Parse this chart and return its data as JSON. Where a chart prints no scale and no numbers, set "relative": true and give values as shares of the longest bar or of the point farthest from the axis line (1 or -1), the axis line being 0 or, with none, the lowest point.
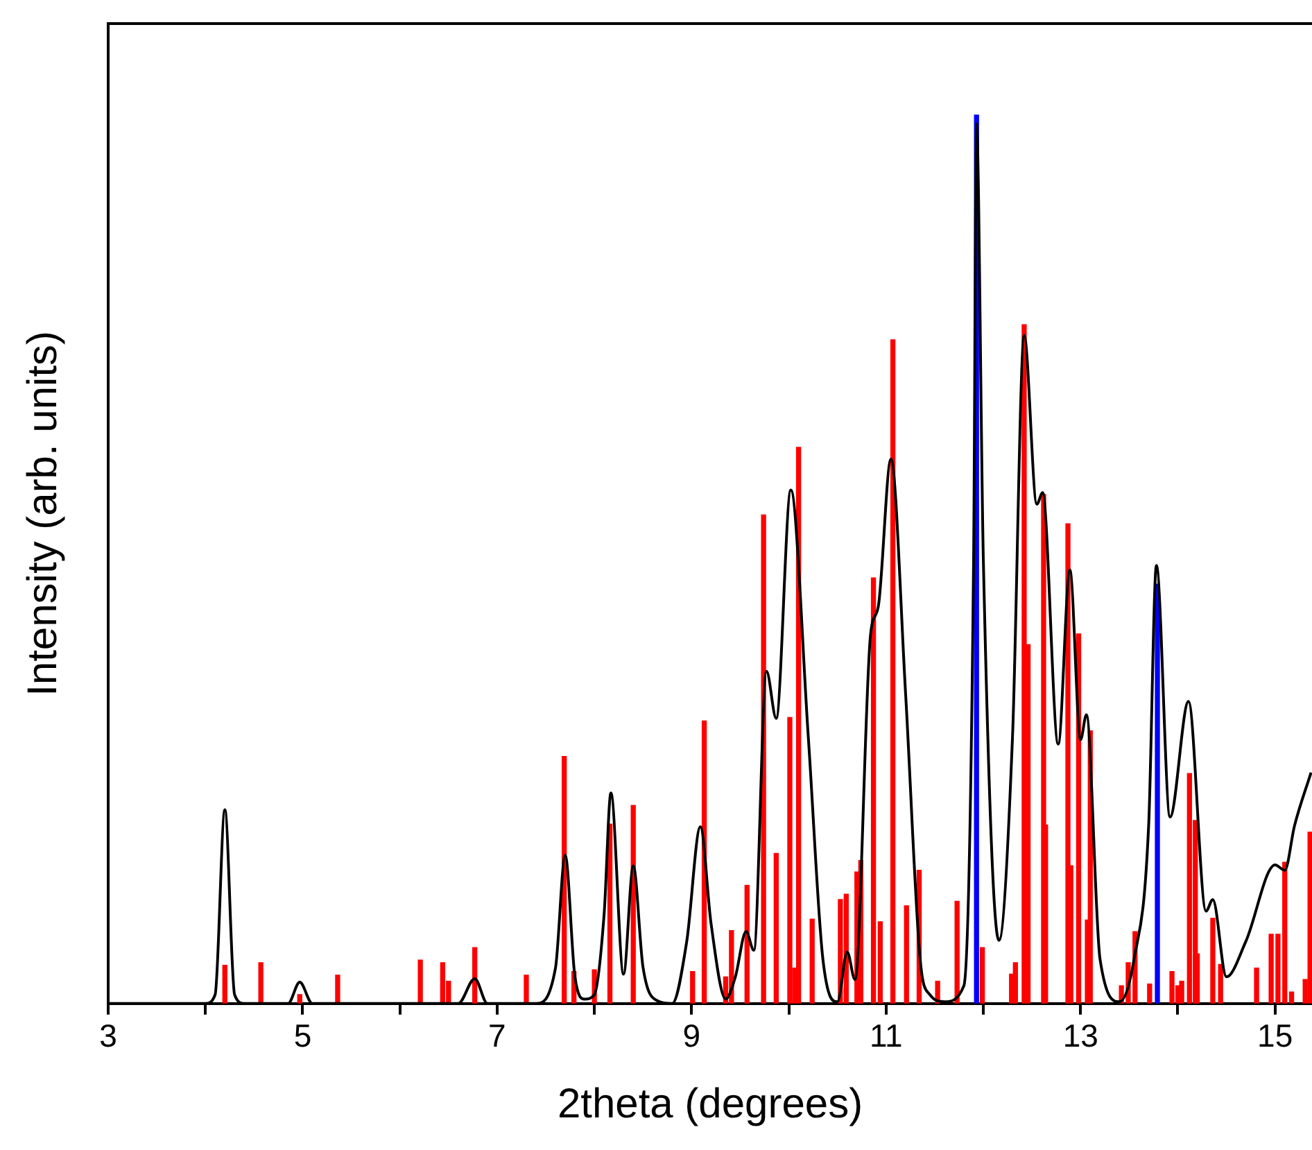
{
  "chart_data": {
    "type": "line",
    "xlabel": "2theta (degrees)",
    "ylabel": "Intensity (arb. units)",
    "relative": true,
    "grid": false,
    "legend": false,
    "xlim": [
      3,
      15.38
    ],
    "xticks": [
      3,
      {
        "value": 4,
        "label": null
      },
      5,
      {
        "value": 6,
        "label": null
      },
      7,
      {
        "value": 8,
        "label": null
      },
      9,
      {
        "value": 10,
        "label": null
      },
      11,
      {
        "value": 12,
        "label": null
      },
      13,
      {
        "value": 14,
        "label": null
      },
      15
    ],
    "series": [
      {
        "type": "bar",
        "color": "#ff0000",
        "x": [
          4.2,
          4.57,
          4.97,
          5.36,
          6.21,
          6.44,
          6.5,
          6.77,
          7.3,
          7.69,
          7.79,
          8.0,
          8.16,
          8.4,
          9.01,
          9.13,
          9.35,
          9.41,
          9.57,
          9.74,
          9.87,
          10.01,
          10.06,
          10.1,
          10.24,
          10.53,
          10.59,
          10.7,
          10.74,
          10.87,
          10.94,
          11.07,
          11.21,
          11.34,
          11.53,
          11.73,
          11.99,
          12.29,
          12.33,
          12.42,
          12.46,
          12.62,
          12.64,
          12.87,
          12.9,
          12.98,
          13.07,
          13.1,
          13.42,
          13.49,
          13.56,
          13.71,
          13.94,
          14.0,
          14.04,
          14.12,
          14.18,
          14.2,
          14.36,
          14.44,
          14.81,
          14.96,
          15.03,
          15.1,
          15.17,
          15.31,
          15.36
        ],
        "values": [
          0.043,
          0.046,
          0.01,
          0.032,
          0.049,
          0.046,
          0.025,
          0.063,
          0.032,
          0.278,
          0.036,
          0.038,
          0.202,
          0.223,
          0.036,
          0.318,
          0.03,
          0.082,
          0.133,
          0.55,
          0.169,
          0.322,
          0.04,
          0.626,
          0.095,
          0.117,
          0.123,
          0.148,
          0.161,
          0.479,
          0.092,
          0.747,
          0.11,
          0.15,
          0.025,
          0.115,
          0.063,
          0.033,
          0.046,
          0.764,
          0.404,
          0.573,
          0.201,
          0.54,
          0.155,
          0.416,
          0.094,
          0.307,
          0.02,
          0.046,
          0.081,
          0.022,
          0.036,
          0.02,
          0.025,
          0.259,
          0.206,
          0.056,
          0.096,
          0.044,
          0.04,
          0.078,
          0.078,
          0.159,
          0.013,
          0.027,
          0.193
        ]
      },
      {
        "type": "line",
        "color": "#000000",
        "x": [
          3,
          4,
          4.1,
          4.2,
          4.3,
          4.4,
          4.85,
          4.97,
          5.1,
          6.6,
          6.77,
          6.9,
          7.4,
          7.6,
          7.7,
          7.8,
          7.9,
          8.0,
          8.1,
          8.17,
          8.3,
          8.4,
          8.5,
          8.65,
          8.8,
          8.95,
          9.09,
          9.2,
          9.35,
          9.45,
          9.56,
          9.64,
          9.77,
          9.87,
          10.02,
          10.2,
          10.35,
          10.5,
          10.6,
          10.68,
          10.84,
          10.92,
          11.05,
          11.2,
          11.35,
          11.45,
          11.6,
          11.8,
          11.9,
          11.93,
          12.0,
          12.16,
          12.3,
          12.42,
          12.55,
          12.61,
          12.77,
          12.89,
          13.0,
          13.06,
          13.2,
          13.4,
          13.55,
          13.7,
          13.78,
          13.92,
          14.11,
          14.29,
          14.36,
          14.5,
          14.7,
          15.0,
          15.1,
          15.2,
          15.37
        ],
        "values": [
          0,
          0,
          0.01,
          0.218,
          0.01,
          0,
          0,
          0.024,
          0,
          0,
          0.028,
          0,
          0,
          0.04,
          0.167,
          0.03,
          0.005,
          0.01,
          0.1,
          0.237,
          0.033,
          0.155,
          0.041,
          0.003,
          0,
          0.07,
          0.199,
          0.09,
          0.005,
          0.03,
          0.081,
          0.06,
          0.374,
          0.321,
          0.578,
          0.3,
          0.05,
          0.002,
          0.058,
          0.027,
          0.415,
          0.447,
          0.613,
          0.35,
          0.05,
          0.01,
          0.002,
          0.02,
          0.5,
          0.99,
          0.5,
          0.071,
          0.3,
          0.752,
          0.562,
          0.575,
          0.292,
          0.488,
          0.297,
          0.325,
          0.05,
          0.002,
          0.05,
          0.2,
          0.493,
          0.21,
          0.34,
          0.104,
          0.117,
          0.03,
          0.07,
          0.156,
          0.15,
          0.2,
          0.26
        ]
      },
      {
        "type": "bar",
        "color": "#0000ff",
        "x": [
          11.93,
          13.79
        ],
        "values": [
          1.0,
          0.472
        ]
      }
    ]
  }
}
